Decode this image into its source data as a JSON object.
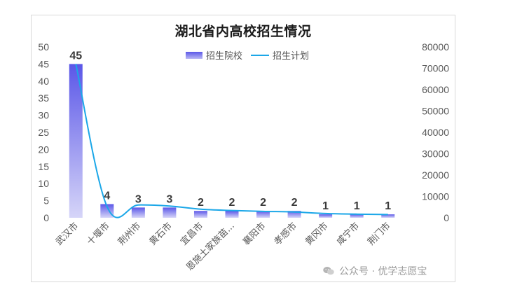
{
  "chart_data": {
    "type": "bar",
    "title": "湖北省内高校招生情况",
    "categories": [
      "武汉市",
      "十堰市",
      "荆州市",
      "黄石市",
      "宜昌市",
      "恩施土家族苗...",
      "襄阳市",
      "孝感市",
      "黄冈市",
      "咸宁市",
      "荆门市"
    ],
    "series": [
      {
        "name": "招生院校",
        "type": "bar",
        "axis": "left",
        "values": [
          45,
          4,
          3,
          3,
          2,
          2,
          2,
          2,
          1,
          1,
          1
        ]
      },
      {
        "name": "招生计划",
        "type": "line",
        "axis": "right",
        "values": [
          72000,
          5200,
          6000,
          5500,
          4000,
          3400,
          3000,
          2700,
          2000,
          1700,
          1500
        ]
      }
    ],
    "data_labels": [
      "45",
      "4",
      "3",
      "3",
      "2",
      "2",
      "2",
      "2",
      "1",
      "1",
      "1"
    ],
    "y_left": {
      "min": 0,
      "max": 50,
      "step": 5,
      "ticks": [
        "0",
        "5",
        "10",
        "15",
        "20",
        "25",
        "30",
        "35",
        "40",
        "45",
        "50"
      ]
    },
    "y_right": {
      "min": 0,
      "max": 80000,
      "step": 10000,
      "ticks": [
        "0",
        "10000",
        "20000",
        "30000",
        "40000",
        "50000",
        "60000",
        "70000",
        "80000"
      ]
    },
    "xlabel": "",
    "ylabel": "",
    "grid": false,
    "legend_position": "top",
    "colors": {
      "bar_top": "#5b57e8",
      "bar_bottom": "#d6d5f8",
      "line": "#1ba7e8"
    }
  },
  "watermark": {
    "icon": "wechat-icon",
    "text": "公众号 · 优学志愿宝"
  }
}
